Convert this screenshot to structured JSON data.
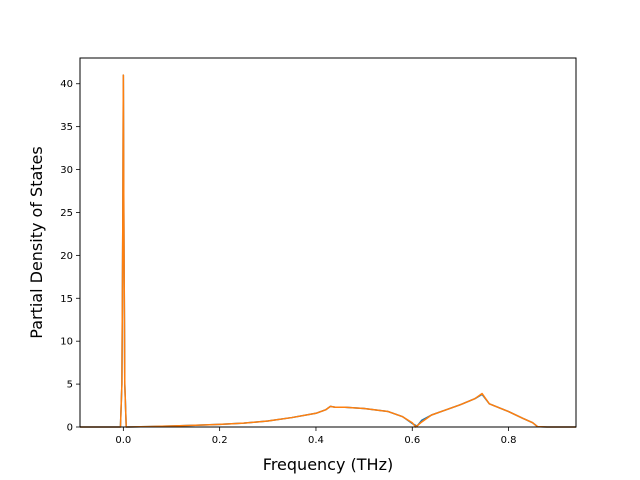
{
  "chart_data": {
    "type": "line",
    "title": "",
    "xlabel": "Frequency (THz)",
    "ylabel": "Partial Density of States",
    "xlim": [
      -0.09,
      0.94
    ],
    "ylim": [
      0,
      43
    ],
    "x_scale": "linear",
    "y_scale": "linear",
    "grid": false,
    "legend": "none",
    "x_ticks": [
      {
        "value": 0.0,
        "label": "0.0"
      },
      {
        "value": 0.2,
        "label": "0.2"
      },
      {
        "value": 0.4,
        "label": "0.4"
      },
      {
        "value": 0.6,
        "label": "0.6"
      },
      {
        "value": 0.8,
        "label": "0.8"
      }
    ],
    "y_ticks": [
      {
        "value": 0,
        "label": "0"
      },
      {
        "value": 5,
        "label": "5"
      },
      {
        "value": 10,
        "label": "10"
      },
      {
        "value": 15,
        "label": "15"
      },
      {
        "value": 20,
        "label": "20"
      },
      {
        "value": 25,
        "label": "25"
      },
      {
        "value": 30,
        "label": "30"
      },
      {
        "value": 35,
        "label": "35"
      },
      {
        "value": 40,
        "label": "40"
      }
    ],
    "series": [
      {
        "color": "#1f77b4",
        "x": [
          -0.09,
          -0.006,
          -0.003,
          -0.001,
          0.0,
          0.001,
          0.003,
          0.006,
          0.05,
          0.1,
          0.15,
          0.2,
          0.25,
          0.3,
          0.35,
          0.4,
          0.42,
          0.43,
          0.44,
          0.46,
          0.5,
          0.55,
          0.58,
          0.6,
          0.61,
          0.62,
          0.64,
          0.66,
          0.7,
          0.73,
          0.745,
          0.76,
          0.8,
          0.83,
          0.85,
          0.86,
          0.88,
          0.94
        ],
        "y": [
          0,
          0,
          5,
          25,
          41,
          25,
          5,
          0,
          0.05,
          0.12,
          0.2,
          0.3,
          0.45,
          0.7,
          1.1,
          1.6,
          2.0,
          2.4,
          2.3,
          2.3,
          2.15,
          1.8,
          1.2,
          0.4,
          0.1,
          0.8,
          1.4,
          1.8,
          2.6,
          3.3,
          3.8,
          2.7,
          1.8,
          1.0,
          0.5,
          0.05,
          0,
          0
        ]
      },
      {
        "color": "#ff7f0e",
        "x": [
          -0.09,
          -0.006,
          -0.003,
          -0.001,
          0.0,
          0.001,
          0.003,
          0.006,
          0.05,
          0.1,
          0.15,
          0.2,
          0.25,
          0.3,
          0.35,
          0.4,
          0.42,
          0.43,
          0.44,
          0.46,
          0.5,
          0.55,
          0.58,
          0.6,
          0.607,
          0.62,
          0.64,
          0.66,
          0.7,
          0.73,
          0.745,
          0.76,
          0.8,
          0.83,
          0.85,
          0.86,
          0.88,
          0.94
        ],
        "y": [
          0,
          0,
          5,
          25,
          41,
          25,
          5,
          0,
          0.05,
          0.12,
          0.2,
          0.3,
          0.45,
          0.7,
          1.1,
          1.6,
          2.0,
          2.4,
          2.3,
          2.3,
          2.15,
          1.8,
          1.2,
          0.5,
          0.0,
          0.6,
          1.4,
          1.8,
          2.6,
          3.3,
          3.9,
          2.7,
          1.8,
          1.0,
          0.5,
          0.05,
          0,
          0
        ]
      }
    ]
  }
}
